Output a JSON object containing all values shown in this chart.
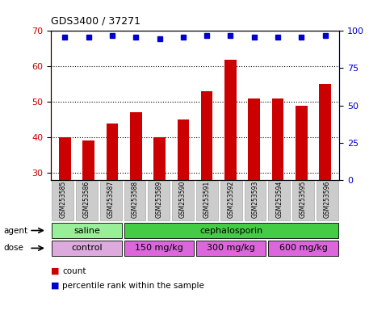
{
  "title": "GDS3400 / 37271",
  "samples": [
    "GSM253585",
    "GSM253586",
    "GSM253587",
    "GSM253588",
    "GSM253589",
    "GSM253590",
    "GSM253591",
    "GSM253592",
    "GSM253593",
    "GSM253594",
    "GSM253595",
    "GSM253596"
  ],
  "counts": [
    40,
    39,
    44,
    47,
    40,
    45,
    53,
    62,
    51,
    51,
    49,
    55
  ],
  "percentile_ranks": [
    96,
    96,
    97,
    96,
    95,
    96,
    97,
    97,
    96,
    96,
    96,
    97
  ],
  "ylim_left": [
    28,
    70
  ],
  "ylim_right": [
    0,
    100
  ],
  "yticks_left": [
    30,
    40,
    50,
    60,
    70
  ],
  "yticks_right": [
    0,
    25,
    50,
    75,
    100
  ],
  "bar_color": "#cc0000",
  "dot_color": "#0000cc",
  "agent_labels": [
    {
      "text": "saline",
      "start": 0,
      "end": 3,
      "color": "#99ee99"
    },
    {
      "text": "cephalosporin",
      "start": 3,
      "end": 12,
      "color": "#44cc44"
    }
  ],
  "dose_labels": [
    {
      "text": "control",
      "start": 0,
      "end": 3,
      "color": "#ddaadd"
    },
    {
      "text": "150 mg/kg",
      "start": 3,
      "end": 6,
      "color": "#dd66dd"
    },
    {
      "text": "300 mg/kg",
      "start": 6,
      "end": 9,
      "color": "#dd66dd"
    },
    {
      "text": "600 mg/kg",
      "start": 9,
      "end": 12,
      "color": "#dd66dd"
    }
  ],
  "count_legend_color": "#cc0000",
  "pct_legend_color": "#0000cc",
  "axis_label_color_left": "#cc0000",
  "axis_label_color_right": "#0000cc",
  "background_color": "#ffffff",
  "xticklabel_bg": "#cccccc"
}
